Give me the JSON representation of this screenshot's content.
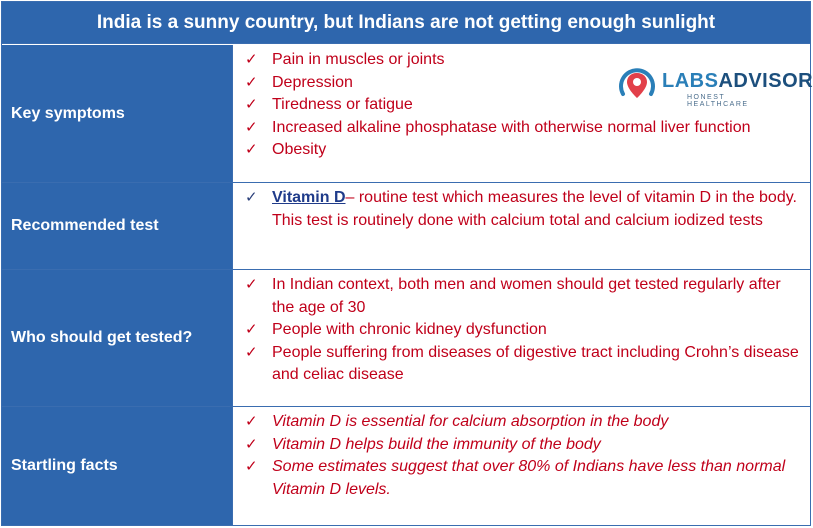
{
  "title": "India is a sunny country, but Indians are not getting enough sunlight",
  "check_mark": "✓",
  "rows": [
    {
      "label": "Key symptoms",
      "items": [
        "Pain in muscles or joints",
        "Depression",
        "Tiredness or fatigue",
        "Increased alkaline phosphatase with otherwise normal liver function",
        "Obesity"
      ]
    },
    {
      "label": "Recommended test",
      "link_text": "Vitamin D",
      "link_rest": "– routine test which measures the level of vitamin D in the body. This test is routinely done with calcium total and calcium iodized tests"
    },
    {
      "label": "Who should get tested?",
      "items": [
        "In Indian context, both men and women should get tested regularly after the age of 30",
        "People with chronic kidney dysfunction",
        "People suffering from diseases of digestive tract including Crohn’s disease and celiac disease"
      ]
    },
    {
      "label": "Startling facts",
      "items": [
        "Vitamin D is essential for calcium absorption in the body",
        "Vitamin D helps build the immunity of the body",
        "Some estimates suggest that over 80% of Indians have less than normal Vitamin D levels."
      ]
    }
  ],
  "logo": {
    "brand_light": "LABS",
    "brand_dark": "ADVISOR",
    "tagline": "HONEST HEALTHCARE",
    "pin_color": "#e2404a",
    "ring_color": "#2a7fb8"
  },
  "colors": {
    "header_bg": "#2e66ad",
    "item_text": "#c0001a",
    "link_text": "#1f3b8a"
  }
}
